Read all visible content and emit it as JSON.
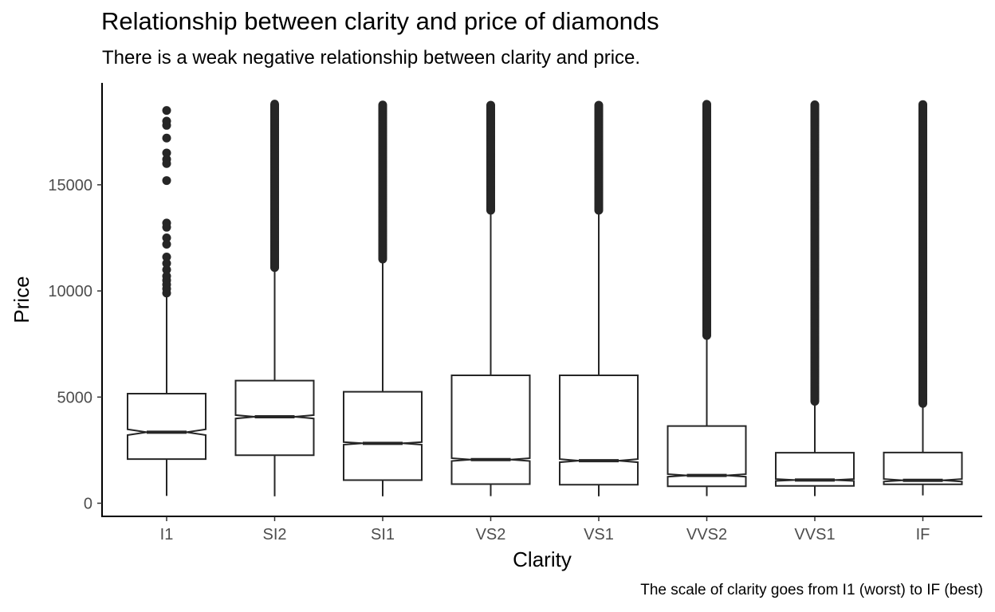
{
  "chart_data": {
    "type": "boxplot",
    "title": "Relationship between clarity and price of diamonds",
    "subtitle": "There is a weak negative relationship between clarity and price.",
    "caption": "The scale of clarity goes from I1 (worst) to IF (best)",
    "xlabel": "Clarity",
    "ylabel": "Price",
    "ylim": [
      -600,
      19300
    ],
    "yticks": [
      0,
      5000,
      10000,
      15000
    ],
    "notched": true,
    "grid": false,
    "categories": [
      "I1",
      "SI2",
      "SI1",
      "VS2",
      "VS1",
      "VVS2",
      "VVS1",
      "IF"
    ],
    "boxes": [
      {
        "category": "I1",
        "min": 345,
        "q1": 2080,
        "median": 3344,
        "q3": 5161,
        "whisker_high": 9780,
        "notch_low": 3210,
        "notch_high": 3480,
        "outliers": [
          9900,
          10100,
          10300,
          10500,
          10700,
          11000,
          11300,
          11600,
          12200,
          12500,
          13000,
          13200,
          15200,
          16000,
          16200,
          16500,
          17200,
          17800,
          18000,
          18500
        ]
      },
      {
        "category": "SI2",
        "min": 326,
        "q1": 2264,
        "median": 4072,
        "q3": 5777,
        "whisker_high": 11000,
        "notch_low": 3990,
        "notch_high": 4150,
        "outliers": [
          11100,
          18800
        ]
      },
      {
        "category": "SI1",
        "min": 326,
        "q1": 1089,
        "median": 2822,
        "q3": 5250,
        "whisker_high": 11480,
        "notch_low": 2760,
        "notch_high": 2880,
        "outliers": [
          11500,
          18800
        ]
      },
      {
        "category": "VS2",
        "min": 334,
        "q1": 900,
        "median": 2054,
        "q3": 6024,
        "whisker_high": 13700,
        "notch_low": 1990,
        "notch_high": 2120,
        "outliers": [
          13800,
          18800
        ]
      },
      {
        "category": "VS1",
        "min": 327,
        "q1": 876,
        "median": 2005,
        "q3": 6023,
        "whisker_high": 13700,
        "notch_low": 1930,
        "notch_high": 2080,
        "outliers": [
          13800,
          18800
        ]
      },
      {
        "category": "VVS2",
        "min": 336,
        "q1": 794,
        "median": 1311,
        "q3": 3638,
        "whisker_high": 7860,
        "notch_low": 1250,
        "notch_high": 1370,
        "outliers": [
          7900,
          18800
        ]
      },
      {
        "category": "VVS1",
        "min": 336,
        "q1": 816,
        "median": 1093,
        "q3": 2379,
        "whisker_high": 4700,
        "notch_low": 1050,
        "notch_high": 1140,
        "outliers": [
          4800,
          18800
        ]
      },
      {
        "category": "IF",
        "min": 369,
        "q1": 895,
        "median": 1080,
        "q3": 2388,
        "whisker_high": 4600,
        "notch_low": 1020,
        "notch_high": 1140,
        "outliers": [
          4700,
          18800
        ]
      }
    ],
    "colors": {
      "box": "#262626",
      "outlier": "#262626",
      "axis": "#000000",
      "tick_label": "#4d4d4d"
    }
  }
}
